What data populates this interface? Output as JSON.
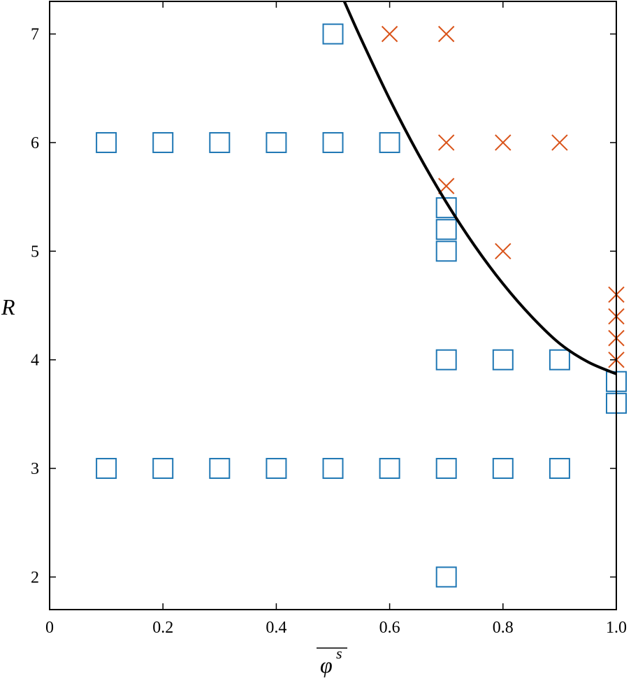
{
  "chart_data": {
    "type": "scatter",
    "title": "",
    "xlabel": "φ",
    "xlabel_superscript": "s",
    "ylabel": "R",
    "xlim": [
      0,
      1.0
    ],
    "ylim": [
      1.7,
      7.3
    ],
    "grid": false,
    "x_ticks": [
      0,
      0.2,
      0.4,
      0.6,
      0.8,
      1.0
    ],
    "x_tick_labels": [
      "0",
      "0.2",
      "0.4",
      "0.6",
      "0.8",
      "1.0"
    ],
    "y_ticks": [
      2,
      3,
      4,
      5,
      6,
      7
    ],
    "y_tick_labels": [
      "2",
      "3",
      "4",
      "5",
      "6",
      "7"
    ],
    "series": [
      {
        "marker": "square",
        "color": "#1f77b4",
        "points": [
          [
            0.5,
            7
          ],
          [
            0.1,
            6
          ],
          [
            0.2,
            6
          ],
          [
            0.3,
            6
          ],
          [
            0.4,
            6
          ],
          [
            0.5,
            6
          ],
          [
            0.6,
            6
          ],
          [
            0.7,
            5.4
          ],
          [
            0.7,
            5.2
          ],
          [
            0.7,
            5.0
          ],
          [
            0.7,
            4
          ],
          [
            0.8,
            4
          ],
          [
            0.9,
            4
          ],
          [
            1.0,
            3.8
          ],
          [
            1.0,
            3.6
          ],
          [
            0.1,
            3
          ],
          [
            0.2,
            3
          ],
          [
            0.3,
            3
          ],
          [
            0.4,
            3
          ],
          [
            0.5,
            3
          ],
          [
            0.6,
            3
          ],
          [
            0.7,
            3
          ],
          [
            0.8,
            3
          ],
          [
            0.9,
            3
          ],
          [
            0.7,
            2
          ]
        ]
      },
      {
        "marker": "cross",
        "color": "#d95319",
        "points": [
          [
            0.6,
            7
          ],
          [
            0.7,
            7
          ],
          [
            0.7,
            6
          ],
          [
            0.8,
            6
          ],
          [
            0.9,
            6
          ],
          [
            0.7,
            5.6
          ],
          [
            0.8,
            5
          ],
          [
            1.0,
            4.6
          ],
          [
            1.0,
            4.4
          ],
          [
            1.0,
            4.2
          ],
          [
            1.0,
            4.0
          ]
        ]
      },
      {
        "marker": "line",
        "color": "#000000",
        "points": [
          [
            0.52,
            7.3
          ],
          [
            0.55,
            6.95
          ],
          [
            0.6,
            6.4
          ],
          [
            0.65,
            5.9
          ],
          [
            0.7,
            5.45
          ],
          [
            0.75,
            5.05
          ],
          [
            0.8,
            4.7
          ],
          [
            0.85,
            4.4
          ],
          [
            0.9,
            4.15
          ],
          [
            0.95,
            3.98
          ],
          [
            1.0,
            3.87
          ]
        ]
      }
    ]
  }
}
